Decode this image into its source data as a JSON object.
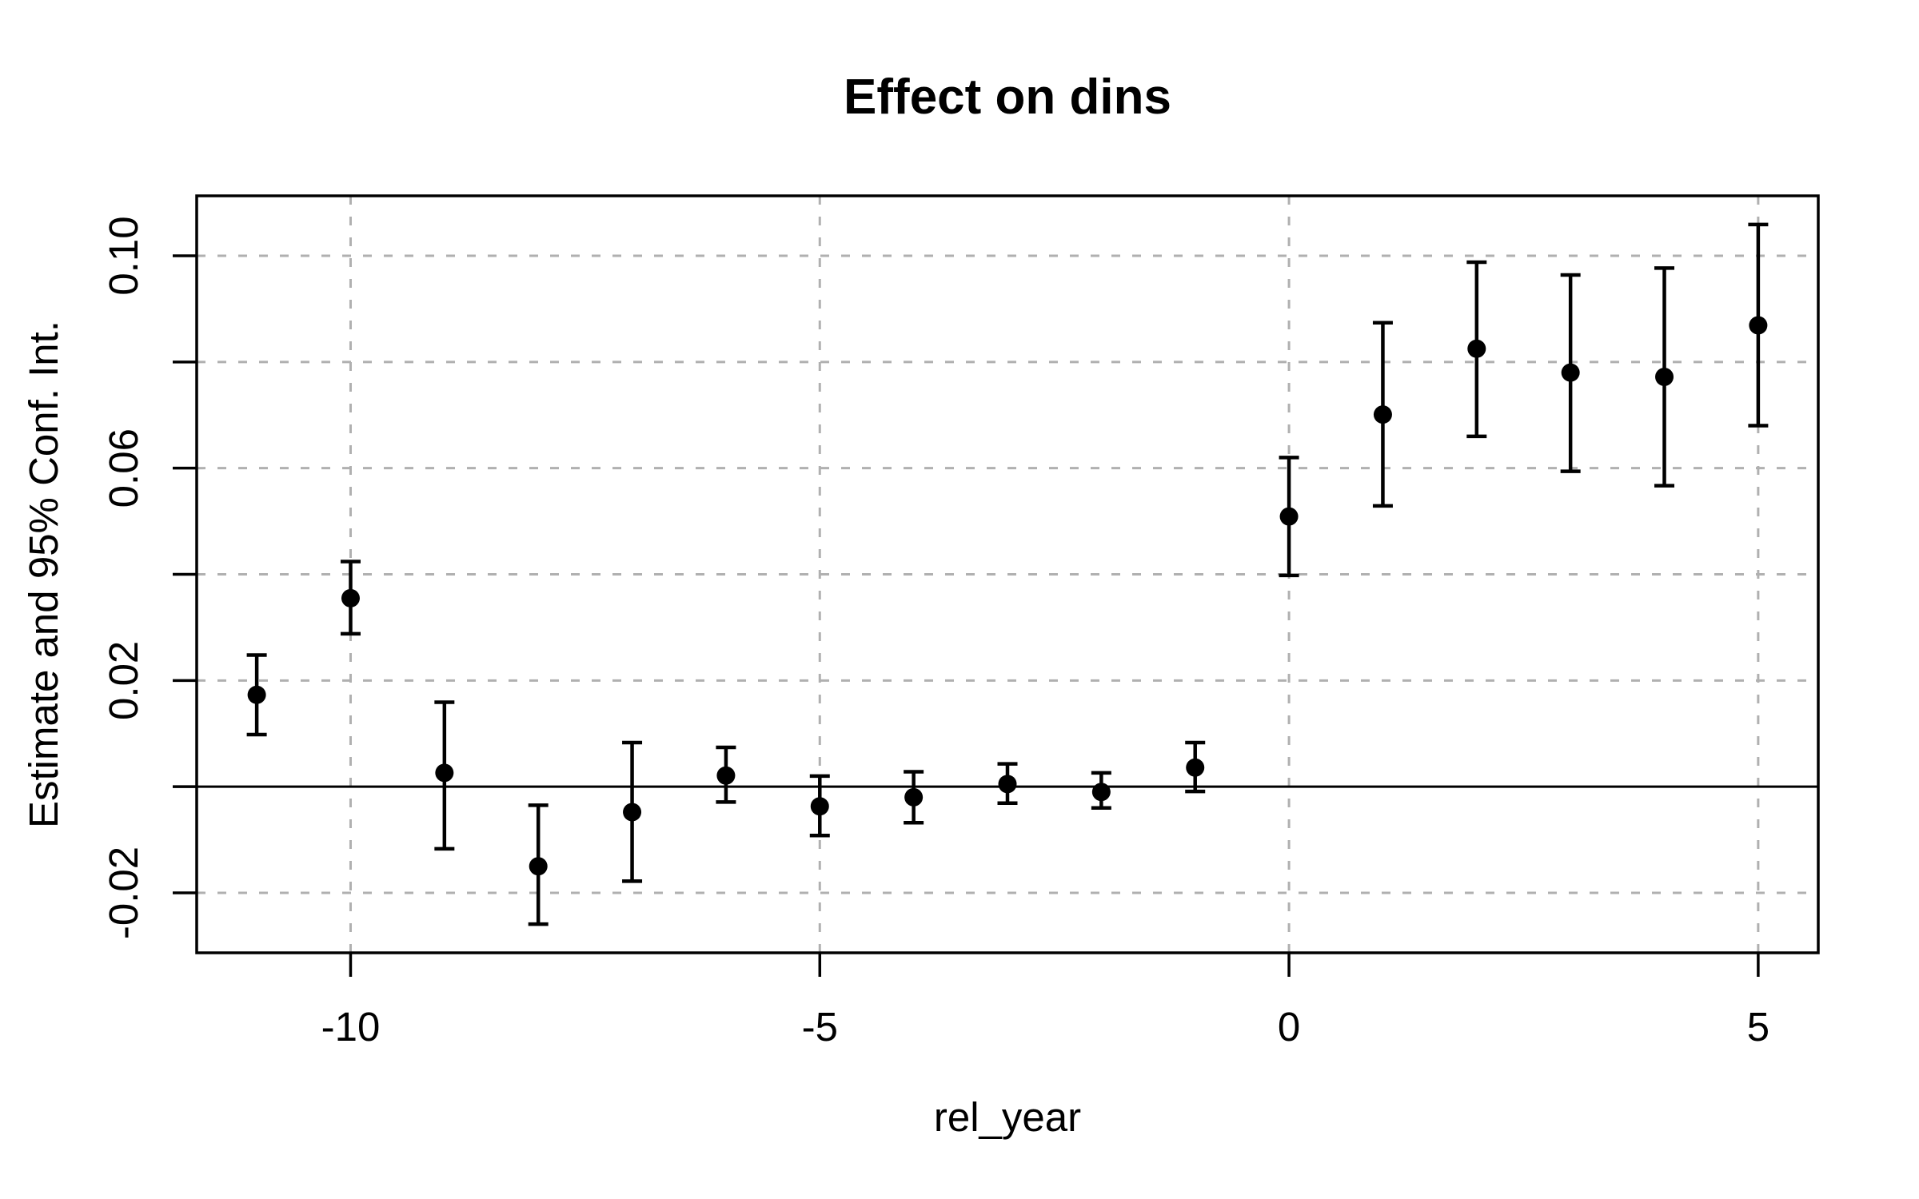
{
  "chart_data": {
    "type": "scatter",
    "subtype": "errorbar-event-study",
    "title": "Effect on dins",
    "xlabel": "rel_year",
    "ylabel": "Estimate and 95% Conf. Int.",
    "xlim": [
      -11.64,
      5.64
    ],
    "ylim": [
      -0.0313,
      0.1113
    ],
    "grid": true,
    "zero_line": 0,
    "colors": {
      "foreground": "#000000",
      "gridline": "#b0b0b0",
      "background": "#ffffff"
    },
    "x_ticks": [
      {
        "v": -10,
        "label": "-10"
      },
      {
        "v": -5,
        "label": "-5"
      },
      {
        "v": 0,
        "label": "0"
      },
      {
        "v": 5,
        "label": "5"
      }
    ],
    "y_ticks": [
      {
        "v": 0.1,
        "label": "0.10"
      },
      {
        "v": 0.08,
        "label": ""
      },
      {
        "v": 0.06,
        "label": "0.06"
      },
      {
        "v": 0.04,
        "label": ""
      },
      {
        "v": 0.02,
        "label": "0.02"
      },
      {
        "v": 0.0,
        "label": ""
      },
      {
        "v": -0.02,
        "label": "-0.02"
      }
    ],
    "series": [
      {
        "name": "estimate",
        "points": [
          {
            "x": -11,
            "est": 0.0173,
            "lo": 0.0098,
            "hi": 0.0248
          },
          {
            "x": -10,
            "est": 0.0355,
            "lo": 0.0288,
            "hi": 0.0424
          },
          {
            "x": -9,
            "est": 0.0026,
            "lo": -0.0117,
            "hi": 0.0159
          },
          {
            "x": -8,
            "est": -0.015,
            "lo": -0.0259,
            "hi": -0.0035
          },
          {
            "x": -7,
            "est": -0.0048,
            "lo": -0.0178,
            "hi": 0.0083
          },
          {
            "x": -6,
            "est": 0.0021,
            "lo": -0.0029,
            "hi": 0.0074
          },
          {
            "x": -5,
            "est": -0.0037,
            "lo": -0.0092,
            "hi": 0.002
          },
          {
            "x": -4,
            "est": -0.002,
            "lo": -0.0068,
            "hi": 0.0028
          },
          {
            "x": -3,
            "est": 0.0005,
            "lo": -0.0031,
            "hi": 0.0043
          },
          {
            "x": -2,
            "est": -0.001,
            "lo": -0.004,
            "hi": 0.0026
          },
          {
            "x": -1,
            "est": 0.0036,
            "lo": -0.0009,
            "hi": 0.0083
          },
          {
            "x": 0,
            "est": 0.0509,
            "lo": 0.0398,
            "hi": 0.062
          },
          {
            "x": 1,
            "est": 0.0701,
            "lo": 0.0529,
            "hi": 0.0874
          },
          {
            "x": 2,
            "est": 0.0825,
            "lo": 0.066,
            "hi": 0.0988
          },
          {
            "x": 3,
            "est": 0.078,
            "lo": 0.0594,
            "hi": 0.0964
          },
          {
            "x": 4,
            "est": 0.0772,
            "lo": 0.0567,
            "hi": 0.0977
          },
          {
            "x": 5,
            "est": 0.0869,
            "lo": 0.068,
            "hi": 0.1059
          }
        ]
      }
    ]
  }
}
